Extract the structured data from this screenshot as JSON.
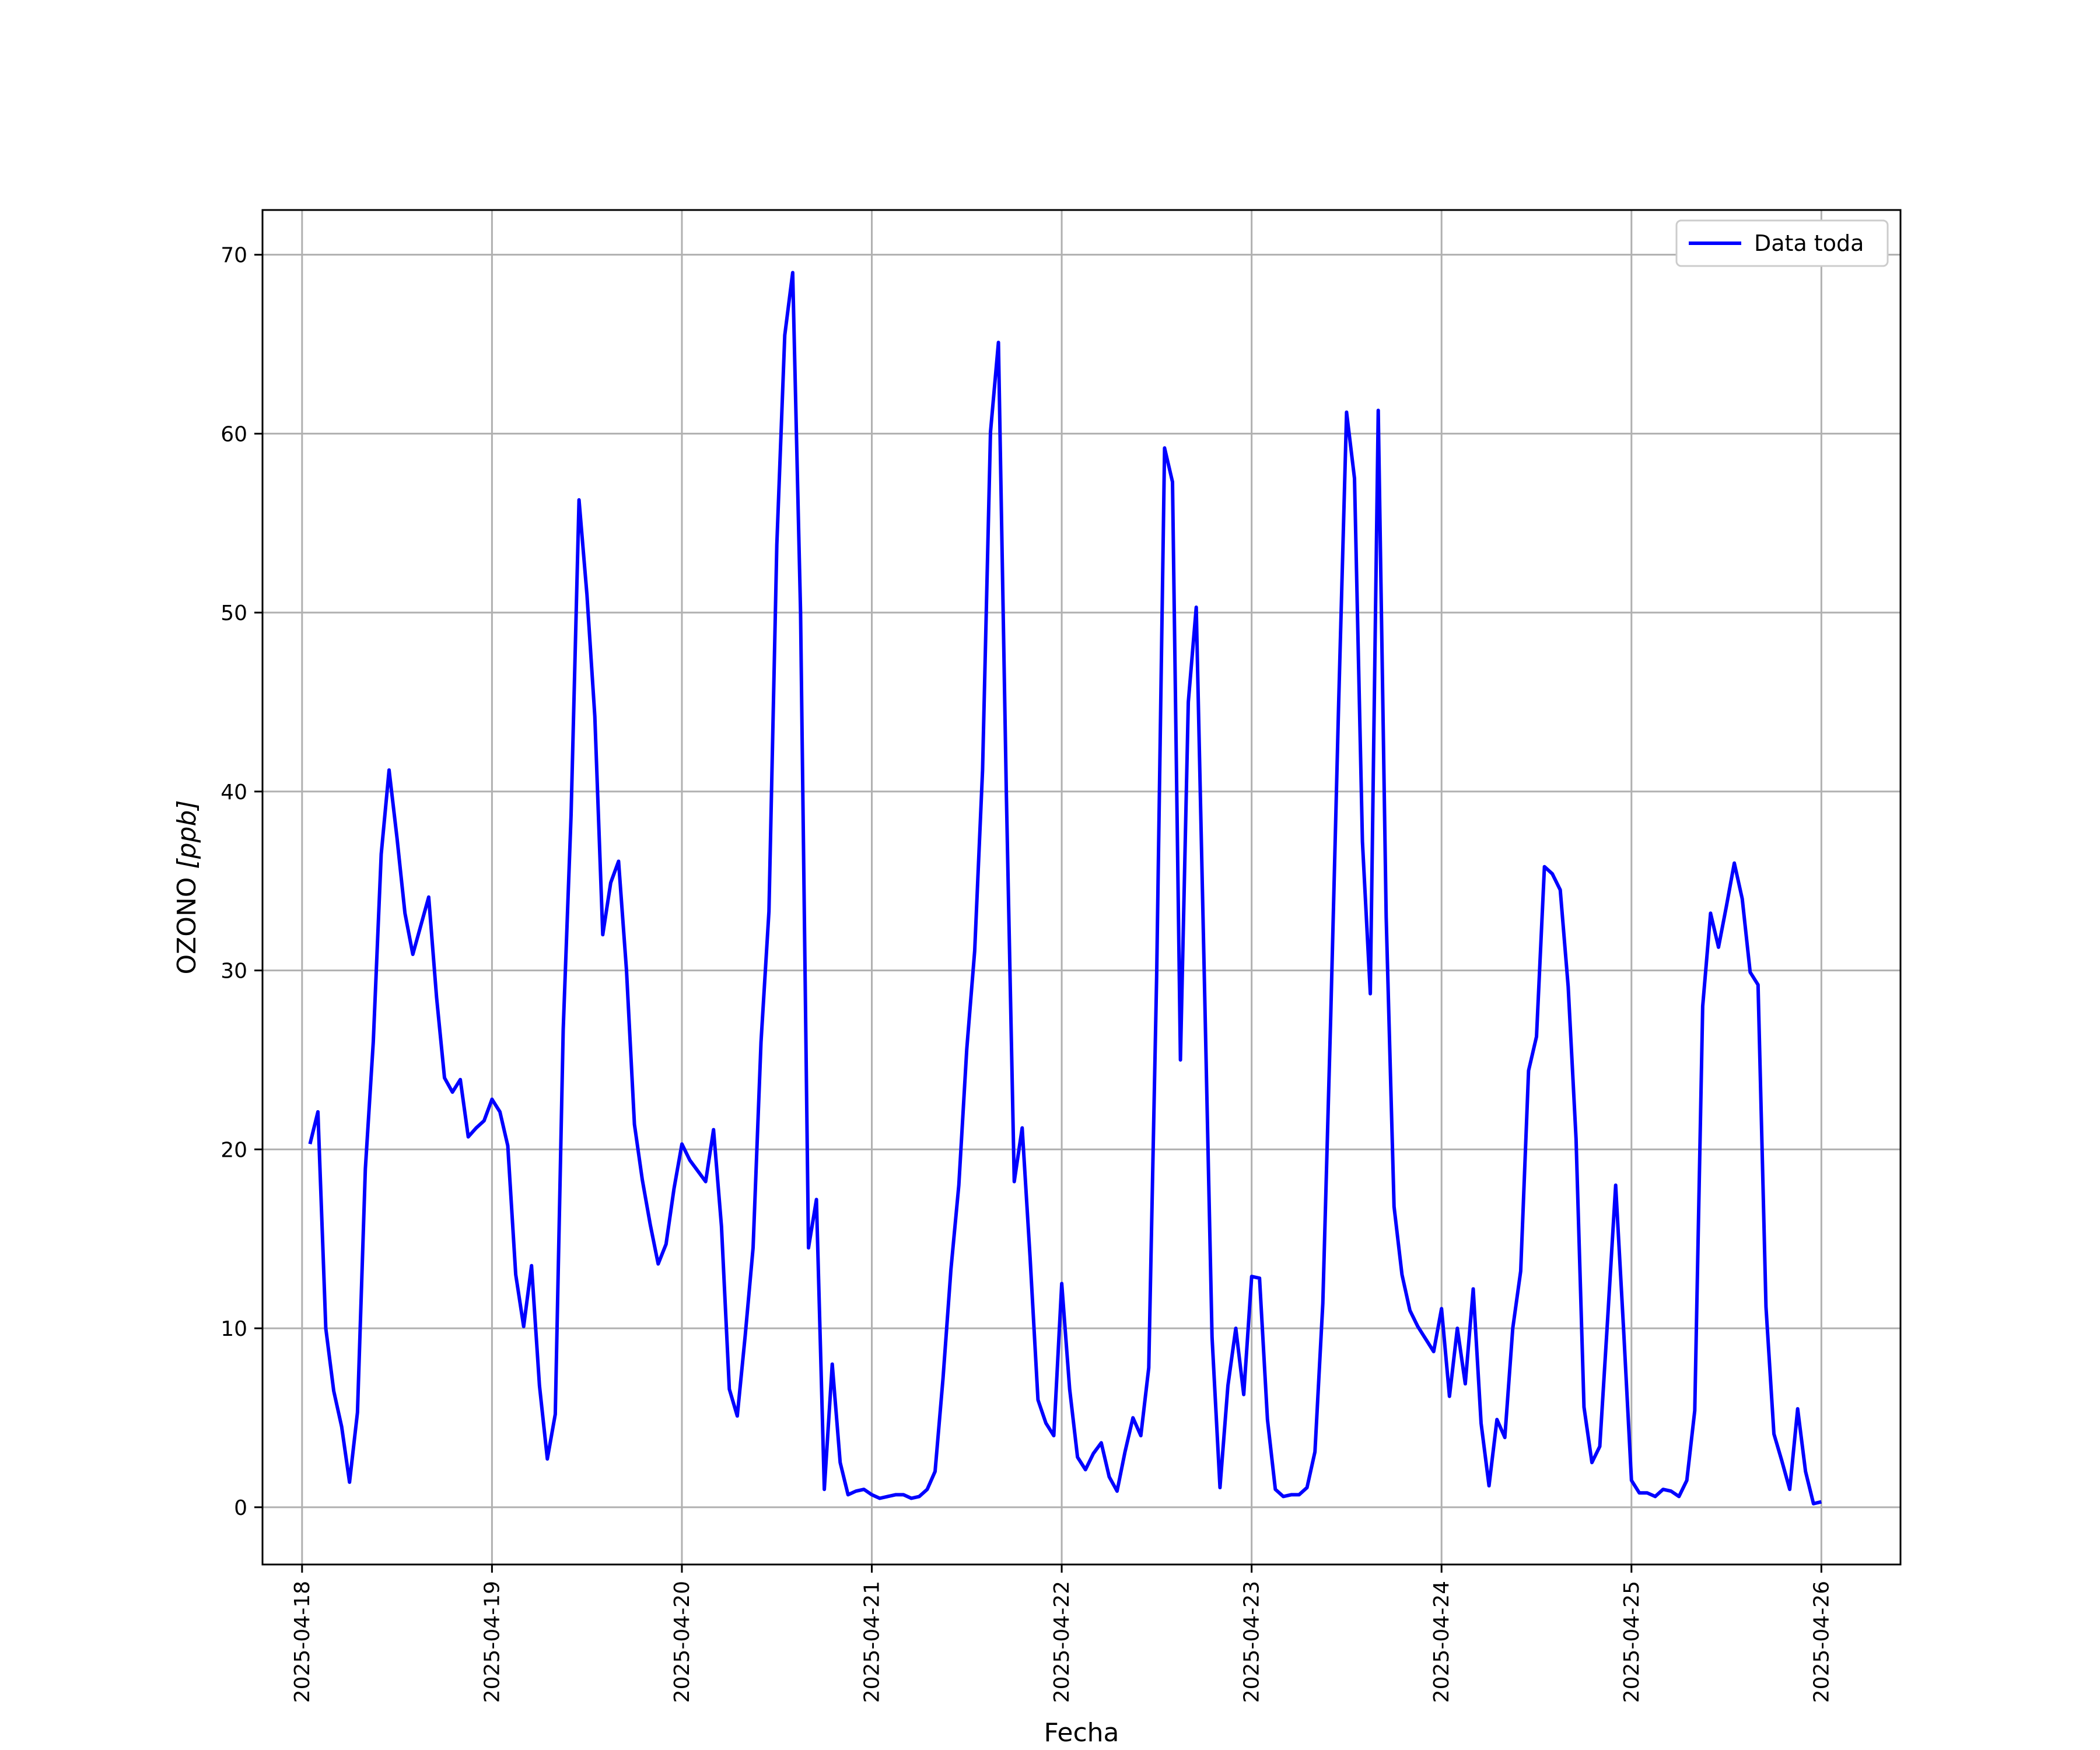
{
  "chart_data": {
    "type": "line",
    "xlabel": "Fecha",
    "ylabel_prefix": "OZONO ",
    "ylabel_unit": "[ppb]",
    "x_ticks": [
      "2025-04-18",
      "2025-04-19",
      "2025-04-20",
      "2025-04-21",
      "2025-04-22",
      "2025-04-23",
      "2025-04-24",
      "2025-04-25",
      "2025-04-26"
    ],
    "y_ticks": [
      "0",
      "10",
      "20",
      "30",
      "40",
      "50",
      "60",
      "70"
    ],
    "xlim": [
      "2025-04-17T19:00",
      "2025-04-26T10:00"
    ],
    "ylim": [
      -3.2,
      72.5
    ],
    "grid": true,
    "legend_position": "top-right",
    "line_color": "#0000ff",
    "series": [
      {
        "name": "Data toda",
        "x": [
          "2025-04-18T01:00",
          "2025-04-18T02:00",
          "2025-04-18T03:00",
          "2025-04-18T04:00",
          "2025-04-18T05:00",
          "2025-04-18T06:00",
          "2025-04-18T07:00",
          "2025-04-18T08:00",
          "2025-04-18T09:00",
          "2025-04-18T10:00",
          "2025-04-18T11:00",
          "2025-04-18T12:00",
          "2025-04-18T13:00",
          "2025-04-18T14:00",
          "2025-04-18T15:00",
          "2025-04-18T16:00",
          "2025-04-18T17:00",
          "2025-04-18T18:00",
          "2025-04-18T19:00",
          "2025-04-18T20:00",
          "2025-04-18T21:00",
          "2025-04-18T22:00",
          "2025-04-18T23:00",
          "2025-04-19T00:00",
          "2025-04-19T01:00",
          "2025-04-19T02:00",
          "2025-04-19T03:00",
          "2025-04-19T04:00",
          "2025-04-19T05:00",
          "2025-04-19T06:00",
          "2025-04-19T07:00",
          "2025-04-19T08:00",
          "2025-04-19T09:00",
          "2025-04-19T10:00",
          "2025-04-19T11:00",
          "2025-04-19T12:00",
          "2025-04-19T13:00",
          "2025-04-19T14:00",
          "2025-04-19T15:00",
          "2025-04-19T16:00",
          "2025-04-19T17:00",
          "2025-04-19T18:00",
          "2025-04-19T19:00",
          "2025-04-19T20:00",
          "2025-04-19T21:00",
          "2025-04-19T22:00",
          "2025-04-19T23:00",
          "2025-04-20T00:00",
          "2025-04-20T01:00",
          "2025-04-20T02:00",
          "2025-04-20T03:00",
          "2025-04-20T04:00",
          "2025-04-20T05:00",
          "2025-04-20T06:00",
          "2025-04-20T07:00",
          "2025-04-20T08:00",
          "2025-04-20T09:00",
          "2025-04-20T10:00",
          "2025-04-20T11:00",
          "2025-04-20T12:00",
          "2025-04-20T13:00",
          "2025-04-20T14:00",
          "2025-04-20T15:00",
          "2025-04-20T16:00",
          "2025-04-20T17:00",
          "2025-04-20T18:00",
          "2025-04-20T19:00",
          "2025-04-20T20:00",
          "2025-04-20T21:00",
          "2025-04-20T22:00",
          "2025-04-20T23:00",
          "2025-04-21T00:00",
          "2025-04-21T01:00",
          "2025-04-21T02:00",
          "2025-04-21T03:00",
          "2025-04-21T04:00",
          "2025-04-21T05:00",
          "2025-04-21T06:00",
          "2025-04-21T07:00",
          "2025-04-21T08:00",
          "2025-04-21T09:00",
          "2025-04-21T10:00",
          "2025-04-21T11:00",
          "2025-04-21T12:00",
          "2025-04-21T13:00",
          "2025-04-21T14:00",
          "2025-04-21T15:00",
          "2025-04-21T16:00",
          "2025-04-21T17:00",
          "2025-04-21T18:00",
          "2025-04-21T19:00",
          "2025-04-21T20:00",
          "2025-04-21T21:00",
          "2025-04-21T22:00",
          "2025-04-21T23:00",
          "2025-04-22T00:00",
          "2025-04-22T01:00",
          "2025-04-22T02:00",
          "2025-04-22T03:00",
          "2025-04-22T04:00",
          "2025-04-22T05:00",
          "2025-04-22T06:00",
          "2025-04-22T07:00",
          "2025-04-22T08:00",
          "2025-04-22T09:00",
          "2025-04-22T10:00",
          "2025-04-22T11:00",
          "2025-04-22T12:00",
          "2025-04-22T13:00",
          "2025-04-22T14:00",
          "2025-04-22T15:00",
          "2025-04-22T16:00",
          "2025-04-22T17:00",
          "2025-04-22T18:00",
          "2025-04-22T19:00",
          "2025-04-22T20:00",
          "2025-04-22T21:00",
          "2025-04-22T22:00",
          "2025-04-22T23:00",
          "2025-04-23T00:00",
          "2025-04-23T01:00",
          "2025-04-23T02:00",
          "2025-04-23T03:00",
          "2025-04-23T04:00",
          "2025-04-23T05:00",
          "2025-04-23T06:00",
          "2025-04-23T07:00",
          "2025-04-23T08:00",
          "2025-04-23T09:00",
          "2025-04-23T10:00",
          "2025-04-23T11:00",
          "2025-04-23T12:00",
          "2025-04-23T13:00",
          "2025-04-23T14:00",
          "2025-04-23T15:00",
          "2025-04-23T16:00",
          "2025-04-23T17:00",
          "2025-04-23T18:00",
          "2025-04-23T19:00",
          "2025-04-23T20:00",
          "2025-04-23T21:00",
          "2025-04-23T22:00",
          "2025-04-23T23:00",
          "2025-04-24T00:00",
          "2025-04-24T01:00",
          "2025-04-24T02:00",
          "2025-04-24T03:00",
          "2025-04-24T04:00",
          "2025-04-24T05:00",
          "2025-04-24T06:00",
          "2025-04-24T07:00",
          "2025-04-24T08:00",
          "2025-04-24T09:00",
          "2025-04-24T10:00",
          "2025-04-24T11:00",
          "2025-04-24T12:00",
          "2025-04-24T13:00",
          "2025-04-24T14:00",
          "2025-04-24T15:00",
          "2025-04-24T16:00",
          "2025-04-24T17:00",
          "2025-04-24T18:00",
          "2025-04-24T19:00",
          "2025-04-24T20:00",
          "2025-04-24T21:00",
          "2025-04-24T22:00",
          "2025-04-24T23:00",
          "2025-04-25T00:00",
          "2025-04-25T01:00",
          "2025-04-25T02:00",
          "2025-04-25T03:00",
          "2025-04-25T04:00",
          "2025-04-25T05:00",
          "2025-04-25T06:00",
          "2025-04-25T07:00",
          "2025-04-25T08:00",
          "2025-04-25T09:00",
          "2025-04-25T10:00",
          "2025-04-25T11:00",
          "2025-04-25T12:00",
          "2025-04-25T13:00",
          "2025-04-25T14:00",
          "2025-04-25T15:00",
          "2025-04-25T16:00",
          "2025-04-25T17:00",
          "2025-04-25T18:00",
          "2025-04-25T19:00",
          "2025-04-25T20:00",
          "2025-04-25T21:00",
          "2025-04-25T22:00",
          "2025-04-25T23:00",
          "2025-04-26T00:00"
        ],
        "y": [
          20.3,
          22.1,
          10.0,
          6.5,
          4.5,
          1.4,
          5.3,
          18.9,
          26.0,
          36.5,
          41.2,
          37.4,
          33.2,
          30.9,
          32.5,
          34.1,
          28.5,
          24.0,
          23.2,
          23.9,
          20.7,
          21.2,
          21.6,
          22.8,
          22.1,
          20.2,
          13.0,
          10.1,
          13.5,
          6.8,
          2.7,
          5.2,
          26.7,
          38.7,
          56.3,
          51.0,
          44.2,
          32.0,
          34.9,
          36.1,
          30.0,
          21.4,
          18.3,
          15.8,
          13.6,
          14.7,
          17.8,
          20.3,
          19.4,
          18.8,
          18.2,
          21.1,
          15.7,
          6.6,
          5.1,
          9.6,
          14.5,
          26.0,
          33.3,
          53.8,
          65.5,
          69.0,
          50.0,
          14.5,
          17.2,
          1.0,
          8.0,
          2.5,
          0.7,
          0.9,
          1.0,
          0.7,
          0.5,
          0.6,
          0.7,
          0.7,
          0.5,
          0.6,
          1.0,
          2.0,
          7.2,
          13.3,
          18.0,
          25.6,
          31.1,
          41.2,
          60.1,
          65.1,
          40.0,
          18.2,
          21.2,
          14.0,
          6.0,
          4.7,
          4.0,
          12.5,
          6.6,
          2.8,
          2.1,
          3.0,
          3.6,
          1.7,
          0.9,
          3.1,
          5.0,
          4.0,
          7.8,
          29.8,
          59.2,
          57.3,
          25.0,
          45.0,
          50.3,
          30.0,
          9.5,
          1.1,
          6.8,
          10.0,
          6.3,
          12.9,
          12.8,
          4.9,
          1.0,
          0.6,
          0.7,
          0.7,
          1.1,
          3.1,
          11.4,
          27.5,
          45.0,
          61.2,
          57.5,
          37.2,
          28.7,
          61.3,
          33.0,
          16.8,
          13.0,
          11.0,
          10.1,
          9.4,
          8.7,
          11.1,
          6.2,
          10.0,
          6.9,
          12.2,
          4.7,
          1.2,
          4.9,
          3.9,
          10.0,
          13.2,
          24.4,
          26.3,
          35.8,
          35.4,
          34.5,
          29.1,
          20.6,
          5.6,
          2.5,
          3.4,
          10.6,
          18.0,
          10.0,
          1.5,
          0.8,
          0.8,
          0.6,
          1.0,
          0.9,
          0.6,
          1.5,
          5.4,
          28.0,
          33.2,
          31.3,
          33.6,
          36.0,
          34.0,
          29.9,
          29.2,
          11.2,
          4.1,
          2.6,
          1.0,
          5.5,
          2.0,
          0.2,
          0.3
        ]
      }
    ]
  }
}
